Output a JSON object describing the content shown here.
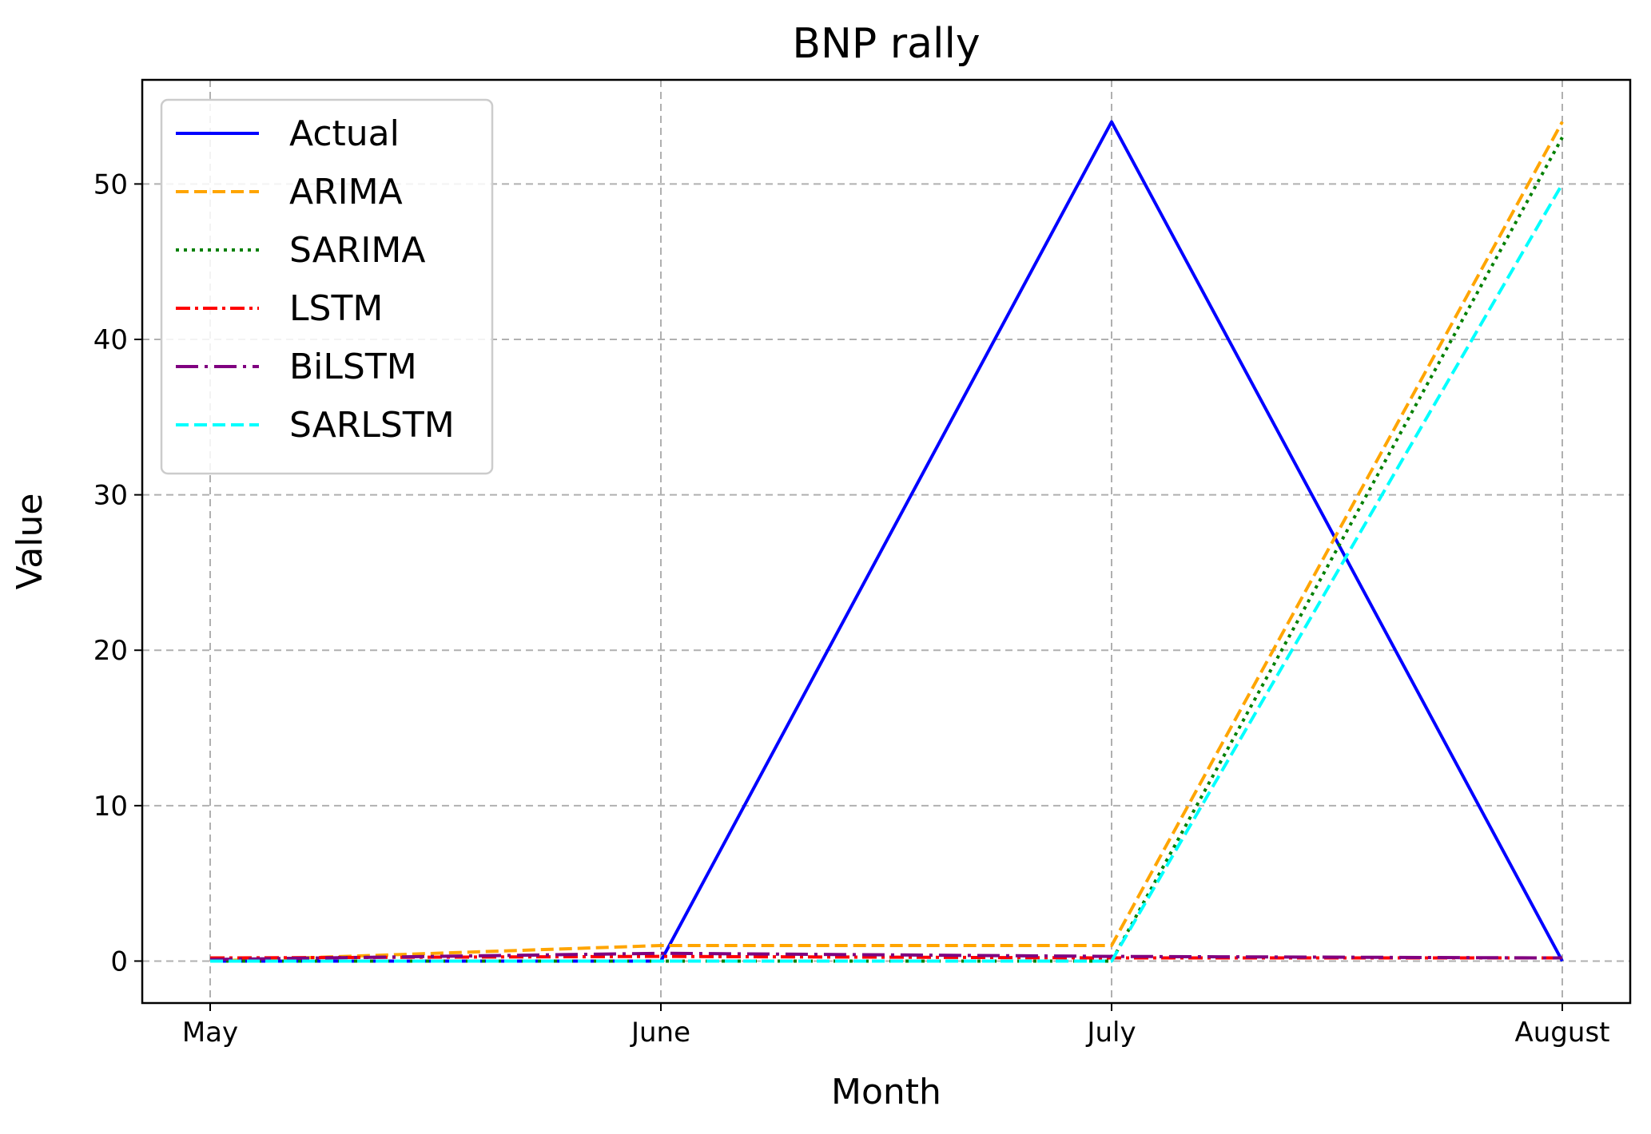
{
  "chart_data": {
    "type": "line",
    "title": "BNP rally",
    "xlabel": "Month",
    "ylabel": "Value",
    "categories": [
      "May",
      "June",
      "July",
      "August"
    ],
    "ylim": [
      -2.7,
      56.7
    ],
    "yticks": [
      0,
      10,
      20,
      30,
      40,
      50
    ],
    "grid": true,
    "legend_position": "top-left",
    "series": [
      {
        "name": "Actual",
        "values": [
          0,
          0,
          54,
          0
        ],
        "color": "#0000ff",
        "style": "solid"
      },
      {
        "name": "ARIMA",
        "values": [
          0,
          1,
          1,
          54
        ],
        "color": "#ffa500",
        "style": "dashed"
      },
      {
        "name": "SARIMA",
        "values": [
          0,
          0,
          0,
          53
        ],
        "color": "#008000",
        "style": "dotted"
      },
      {
        "name": "LSTM",
        "values": [
          0.2,
          0.3,
          0.2,
          0.2
        ],
        "color": "#ff0000",
        "style": "dashdot"
      },
      {
        "name": "BiLSTM",
        "values": [
          0.1,
          0.5,
          0.3,
          0.2
        ],
        "color": "#800080",
        "style": "longdashdot"
      },
      {
        "name": "SARLSTM",
        "values": [
          0,
          0,
          0,
          50
        ],
        "color": "#00ffff",
        "style": "dashed"
      }
    ]
  }
}
